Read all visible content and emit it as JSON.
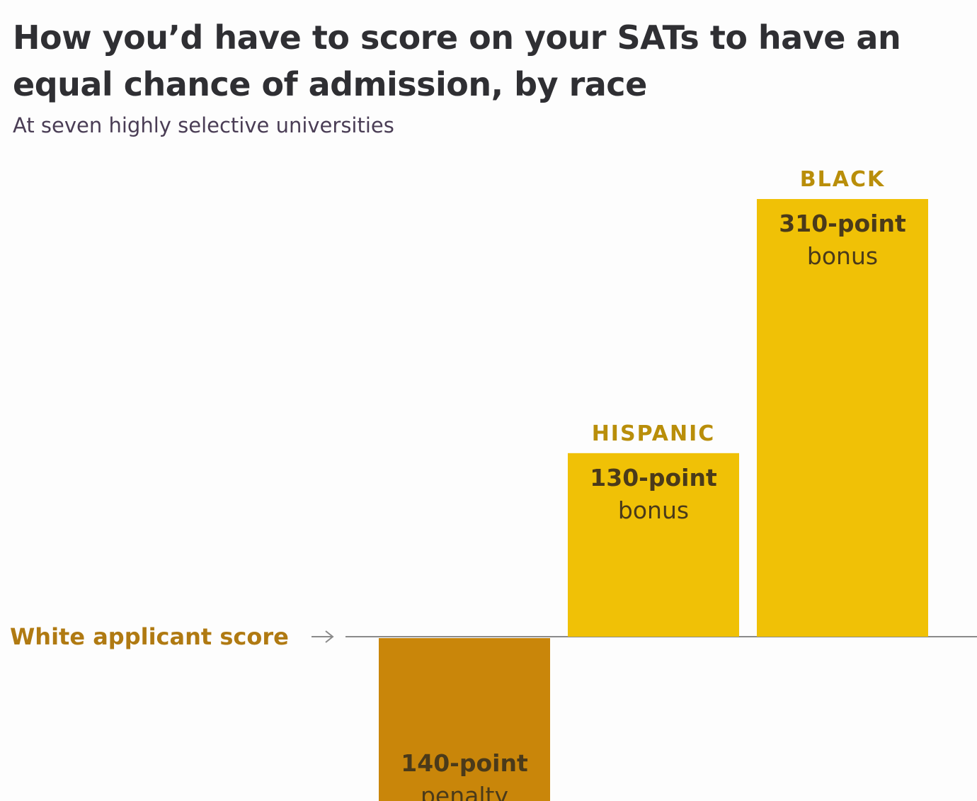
{
  "colors": {
    "bonus_bar": "#f0c106",
    "penalty_bar": "#c9860a",
    "category_text": "#b98e0a",
    "value_text": "#4a3a1a",
    "baseline_text": "#b07a12",
    "axis": "#8a8a8a"
  },
  "chart_data": {
    "type": "bar",
    "title": "How you’d have to score on your SATs to have an equal chance of admission, by race",
    "subtitle": "At seven highly selective universities",
    "baseline_label": "White applicant score",
    "categories": [
      "",
      "HISPANIC",
      "BLACK"
    ],
    "values": [
      -140,
      130,
      310
    ],
    "value_labels": [
      {
        "line1": "140-point",
        "line2": "penalty"
      },
      {
        "line1": "130-point",
        "line2": "bonus"
      },
      {
        "line1": "310-point",
        "line2": "bonus"
      }
    ],
    "unit": "SAT points",
    "ylim": [
      -220,
      360
    ],
    "grid": false,
    "legend": "none"
  }
}
